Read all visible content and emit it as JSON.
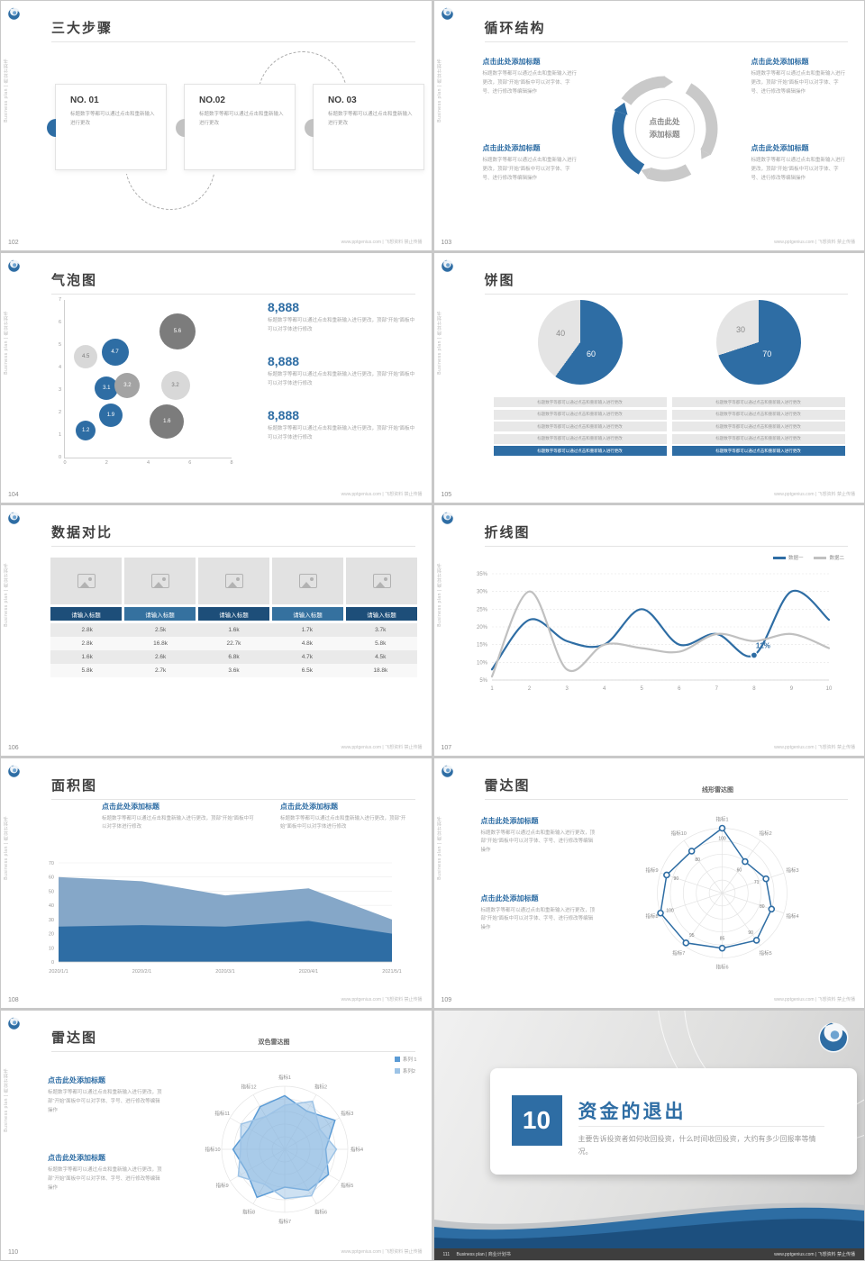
{
  "common": {
    "side_text": "Business plan | 商业计划书",
    "footer_url": "www.pptgenius.com | 飞想资料 禁止传播",
    "brand_blue": "#2e6da4"
  },
  "slides": {
    "s102": {
      "page": "102",
      "title": "三大步骤",
      "steps": [
        {
          "no": "NO. 01",
          "text": "标题数字等都可以通过点击和重新输入进行更改"
        },
        {
          "no": "NO.02",
          "text": "标题数字等都可以通过点击和重新输入进行更改"
        },
        {
          "no": "NO. 03",
          "text": "标题数字等都可以通过点击和重新输入进行更改"
        }
      ]
    },
    "s103": {
      "page": "103",
      "title": "循环结构",
      "center_text": "点击此处\n添加标题",
      "blocks": [
        {
          "title": "点击此处添加标题",
          "body": "标题数字等都可以通过点击和重新输入进行更改，顶部“开始”面板中可以对字体、字号、进行修改等编辑操作"
        },
        {
          "title": "点击此处添加标题",
          "body": "标题数字等都可以通过点击和重新输入进行更改，顶部“开始”面板中可以对字体、字号、进行修改等编辑操作"
        },
        {
          "title": "点击此处添加标题",
          "body": "标题数字等都可以通过点击和重新输入进行更改，顶部“开始”面板中可以对字体、字号、进行修改等编辑操作"
        },
        {
          "title": "点击此处添加标题",
          "body": "标题数字等都可以通过点击和重新输入进行更改，顶部“开始”面板中可以对字体、字号、进行修改等编辑操作"
        }
      ]
    },
    "s104": {
      "page": "104",
      "title": "气泡图",
      "stats": [
        {
          "value": "8,888",
          "text": "标题数字等都可以通过点击和重新输入进行更改，顶部“开始”面板中可以对字体进行修改"
        },
        {
          "value": "8,888",
          "text": "标题数字等都可以通过点击和重新输入进行更改，顶部“开始”面板中可以对字体进行修改"
        },
        {
          "value": "8,888",
          "text": "标题数字等都可以通过点击和重新输入进行更改，顶部“开始”面板中可以对字体进行修改"
        }
      ],
      "chart_data": {
        "type": "scatter",
        "xlim": [
          0,
          8
        ],
        "ylim": [
          0,
          7
        ],
        "xticks": [
          0,
          2,
          4,
          6,
          8
        ],
        "yticks": [
          0,
          1,
          2,
          3,
          4,
          5,
          6,
          7
        ],
        "points": [
          {
            "x": 1,
            "y": 4.5,
            "r": 13,
            "label": "4.5",
            "color": "light"
          },
          {
            "x": 2.4,
            "y": 4.7,
            "r": 15,
            "label": "4.7",
            "color": "blue"
          },
          {
            "x": 5.4,
            "y": 5.6,
            "r": 20,
            "label": "5.6",
            "color": "dark"
          },
          {
            "x": 2,
            "y": 3.1,
            "r": 13,
            "label": "3.1",
            "color": "blue"
          },
          {
            "x": 3,
            "y": 3.2,
            "r": 14,
            "label": "3.2",
            "color": "mid"
          },
          {
            "x": 5.3,
            "y": 3.2,
            "r": 16,
            "label": "3.2",
            "color": "light"
          },
          {
            "x": 2.2,
            "y": 1.9,
            "r": 13,
            "label": "1.9",
            "color": "blue"
          },
          {
            "x": 1,
            "y": 1.2,
            "r": 11,
            "label": "1.2",
            "color": "blue"
          },
          {
            "x": 4.9,
            "y": 1.6,
            "r": 19,
            "label": "1.6",
            "color": "dark"
          }
        ]
      }
    },
    "s105": {
      "page": "105",
      "title": "饼图",
      "bar_text": "标题数字等都可以通过点击和重新输入进行更改",
      "chart_data": [
        {
          "type": "pie",
          "values": [
            60,
            40
          ],
          "labels": [
            "60",
            "40"
          ],
          "colors": [
            "#2e6da4",
            "#e4e4e4"
          ]
        },
        {
          "type": "pie",
          "values": [
            70,
            30
          ],
          "labels": [
            "70",
            "30"
          ],
          "colors": [
            "#2e6da4",
            "#e4e4e4"
          ]
        }
      ]
    },
    "s106": {
      "page": "106",
      "title": "数据对比",
      "table": {
        "headers": [
          "请输入标题",
          "请输入标题",
          "请输入标题",
          "请输入标题",
          "请输入标题"
        ],
        "rows": [
          [
            "2.8k",
            "2.5k",
            "1.6k",
            "1.7k",
            "3.7k"
          ],
          [
            "2.8k",
            "16.8k",
            "22.7k",
            "4.8k",
            "5.8k"
          ],
          [
            "1.6k",
            "2.6k",
            "6.8k",
            "4.7k",
            "4.5k"
          ],
          [
            "5.8k",
            "2.7k",
            "3.6k",
            "6.5k",
            "18.8k"
          ]
        ]
      }
    },
    "s107": {
      "page": "107",
      "title": "折线图",
      "chart_data": {
        "type": "line",
        "x": [
          1,
          2,
          3,
          4,
          5,
          6,
          7,
          8,
          9,
          10
        ],
        "ylim": [
          5,
          35
        ],
        "ytick_labels": [
          "5%",
          "10%",
          "15%",
          "20%",
          "25%",
          "30%",
          "35%"
        ],
        "grid": true,
        "legend_position": "top-right",
        "series": [
          {
            "name": "数据一",
            "color": "#2e6da4",
            "values": [
              8,
              22,
              16,
              15,
              25,
              15,
              18,
              12,
              30,
              22
            ]
          },
          {
            "name": "数据二",
            "color": "#c0c0c0",
            "values": [
              6,
              30,
              8,
              15,
              14,
              13,
              18,
              16,
              18,
              14
            ]
          }
        ],
        "annotation": {
          "x": 8,
          "y": 12,
          "label": "12%"
        }
      }
    },
    "s108": {
      "page": "108",
      "title": "面积图",
      "blocks": [
        {
          "title": "点击此处添加标题",
          "body": "标题数字等都可以通过点击和重新输入进行更改，顶部“开始”面板中可以对字体进行修改"
        },
        {
          "title": "点击此处添加标题",
          "body": "标题数字等都可以通过点击和重新输入进行更改，顶部“开始”面板中可以对字体进行修改"
        }
      ],
      "chart_data": {
        "type": "area",
        "categories": [
          "2020/1/1",
          "2020/2/1",
          "2020/3/1",
          "2020/4/1",
          "2021/5/1"
        ],
        "ylim": [
          0,
          70
        ],
        "yticks": [
          0,
          10,
          20,
          30,
          40,
          50,
          60,
          70
        ],
        "series": [
          {
            "name": "面积一",
            "color": "#85a7c8",
            "values": [
              60,
              57,
              47,
              52,
              30
            ]
          },
          {
            "name": "面积二",
            "color": "#2e6da4",
            "values": [
              25,
              26,
              25,
              29,
              20
            ]
          }
        ]
      }
    },
    "s109": {
      "page": "109",
      "title": "雷达图",
      "chart_title": "线形雷达图",
      "blocks": [
        {
          "title": "点击此处添加标题",
          "body": "标题数字等都可以通过点击和重新输入进行更改，顶部“开始”面板中可以对字体、字号、进行修改等编辑操作"
        },
        {
          "title": "点击此处添加标题",
          "body": "标题数字等都可以通过点击和重新输入进行更改，顶部“开始”面板中可以对字体、字号、进行修改等编辑操作"
        }
      ],
      "chart_data": {
        "type": "radar",
        "labels": [
          "指标1",
          "指标2",
          "指标3",
          "指标4",
          "指标5",
          "指标6",
          "指标7",
          "指标8",
          "指标9",
          "指标10"
        ],
        "max": 100,
        "series": [
          {
            "name": "数据",
            "color": "#2e6da4",
            "values": [
              100,
              60,
              71,
              80,
              90,
              85,
              95,
              100,
              90,
              80
            ],
            "markers": true,
            "show_values": true
          }
        ]
      }
    },
    "s110": {
      "page": "110",
      "title": "雷达图",
      "chart_title": "双色雷达图",
      "blocks": [
        {
          "title": "点击此处添加标题",
          "body": "标题数字等都可以通过点击和重新输入进行更改，顶部“开始”面板中可以对字体、字号、进行修改等编辑操作"
        },
        {
          "title": "点击此处添加标题",
          "body": "标题数字等都可以通过点击和重新输入进行更改，顶部“开始”面板中可以对字体、字号、进行修改等编辑操作"
        }
      ],
      "chart_data": {
        "type": "radar",
        "labels": [
          "指标1",
          "指标2",
          "指标3",
          "指标4",
          "指标5",
          "指标6",
          "指标7",
          "指标8",
          "指标9",
          "指标10",
          "指标11",
          "指标12"
        ],
        "max": 100,
        "series": [
          {
            "name": "系列 1",
            "color": "#5b9bd5",
            "fill": "rgba(91,155,213,0.45)",
            "values": [
              85,
              70,
              92,
              65,
              80,
              75,
              60,
              88,
              70,
              82,
              66,
              78
            ]
          },
          {
            "name": "系列2",
            "color": "#9dc3e6",
            "fill": "rgba(157,195,230,0.5)",
            "values": [
              70,
              88,
              64,
              82,
              70,
              85,
              78,
              64,
              85,
              70,
              80,
              60
            ]
          }
        ]
      }
    },
    "s111": {
      "page": "111",
      "footer_left": "Business plan | 商业计划书",
      "number": "10",
      "title": "资金的退出",
      "description": "主要告诉投资者如何收回投资，什么时间收回投资，大约有多少回报率等情况。"
    }
  }
}
